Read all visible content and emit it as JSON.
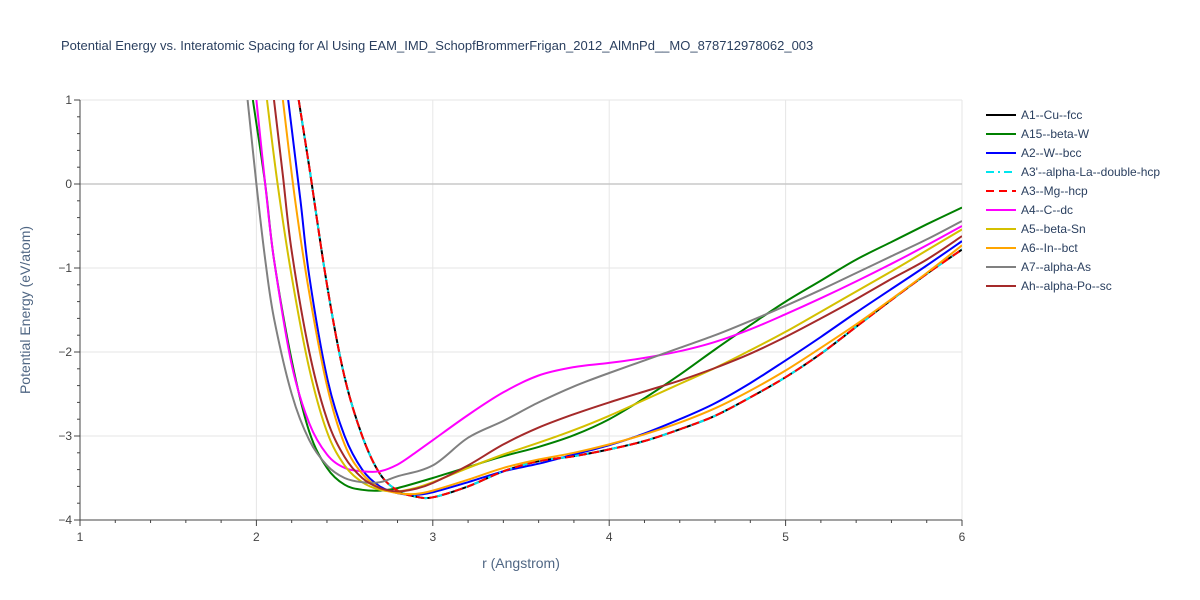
{
  "chart_data": {
    "type": "line",
    "title": "Potential Energy vs. Interatomic Spacing for Al Using EAM_IMD_SchopfBrommerFrigan_2012_AlMnPd__MO_878712978062_003",
    "xlabel": "r (Angstrom)",
    "ylabel": "Potential Energy (eV/atom)",
    "xlim": [
      1,
      6
    ],
    "ylim": [
      -4,
      1
    ],
    "xticks": [
      "1",
      "2",
      "3",
      "4",
      "5",
      "6"
    ],
    "yticks": [
      "1",
      "0",
      "−1",
      "−2",
      "−3",
      "−4"
    ],
    "grid": true,
    "legend_position": "right",
    "series": [
      {
        "name": "A1--Cu--fcc",
        "color": "#000000",
        "dash": "solid",
        "x": [
          2.24,
          2.3,
          2.4,
          2.5,
          2.6,
          2.7,
          2.8,
          2.9,
          3.0,
          3.2,
          3.4,
          3.6,
          3.8,
          4.0,
          4.2,
          4.4,
          4.6,
          4.8,
          5.0,
          5.2,
          5.4,
          5.6,
          5.8,
          6.0
        ],
        "y": [
          1.0,
          0.2,
          -1.2,
          -2.3,
          -3.0,
          -3.45,
          -3.65,
          -3.72,
          -3.73,
          -3.6,
          -3.42,
          -3.3,
          -3.24,
          -3.16,
          -3.06,
          -2.92,
          -2.76,
          -2.54,
          -2.3,
          -2.02,
          -1.7,
          -1.38,
          -1.07,
          -0.78
        ]
      },
      {
        "name": "A15--beta-W",
        "color": "#008000",
        "dash": "solid",
        "x": [
          1.98,
          2.05,
          2.1,
          2.2,
          2.3,
          2.4,
          2.5,
          2.6,
          2.7,
          2.8,
          3.0,
          3.2,
          3.4,
          3.6,
          3.8,
          4.0,
          4.2,
          4.4,
          4.6,
          4.8,
          5.0,
          5.2,
          5.4,
          5.6,
          5.8,
          6.0
        ],
        "y": [
          1.0,
          0.0,
          -0.9,
          -2.1,
          -2.95,
          -3.38,
          -3.58,
          -3.64,
          -3.65,
          -3.62,
          -3.5,
          -3.37,
          -3.24,
          -3.13,
          -2.99,
          -2.8,
          -2.55,
          -2.27,
          -1.97,
          -1.68,
          -1.4,
          -1.15,
          -0.9,
          -0.69,
          -0.48,
          -0.28
        ]
      },
      {
        "name": "A2--W--bcc",
        "color": "#0000ff",
        "dash": "solid",
        "x": [
          2.18,
          2.25,
          2.3,
          2.4,
          2.5,
          2.6,
          2.7,
          2.8,
          2.9,
          3.0,
          3.2,
          3.4,
          3.6,
          3.8,
          4.0,
          4.2,
          4.4,
          4.6,
          4.8,
          5.0,
          5.2,
          5.4,
          5.6,
          5.8,
          6.0
        ],
        "y": [
          1.0,
          -0.2,
          -1.1,
          -2.3,
          -3.0,
          -3.4,
          -3.6,
          -3.68,
          -3.7,
          -3.67,
          -3.55,
          -3.42,
          -3.33,
          -3.22,
          -3.11,
          -2.97,
          -2.8,
          -2.61,
          -2.37,
          -2.1,
          -1.82,
          -1.53,
          -1.25,
          -0.97,
          -0.68
        ]
      },
      {
        "name": "A3'--alpha-La--double-hcp",
        "color": "#00e5ee",
        "dash": "dashdot",
        "x": [
          2.24,
          2.3,
          2.4,
          2.5,
          2.6,
          2.7,
          2.8,
          2.9,
          3.0,
          3.2,
          3.4,
          3.6,
          3.8,
          4.0,
          4.2,
          4.4,
          4.6,
          4.8,
          5.0,
          5.2,
          5.4,
          5.6,
          5.8,
          6.0
        ],
        "y": [
          1.0,
          0.2,
          -1.2,
          -2.3,
          -3.0,
          -3.45,
          -3.65,
          -3.72,
          -3.73,
          -3.6,
          -3.42,
          -3.3,
          -3.24,
          -3.16,
          -3.06,
          -2.92,
          -2.76,
          -2.54,
          -2.3,
          -2.02,
          -1.7,
          -1.38,
          -1.07,
          -0.78
        ]
      },
      {
        "name": "A3--Mg--hcp",
        "color": "#ff0000",
        "dash": "dash",
        "x": [
          2.24,
          2.3,
          2.4,
          2.5,
          2.6,
          2.7,
          2.8,
          2.9,
          3.0,
          3.2,
          3.4,
          3.6,
          3.8,
          4.0,
          4.2,
          4.4,
          4.6,
          4.8,
          5.0,
          5.2,
          5.4,
          5.6,
          5.8,
          6.0
        ],
        "y": [
          1.0,
          0.2,
          -1.2,
          -2.3,
          -3.0,
          -3.45,
          -3.65,
          -3.72,
          -3.73,
          -3.6,
          -3.42,
          -3.3,
          -3.24,
          -3.16,
          -3.06,
          -2.92,
          -2.76,
          -2.54,
          -2.3,
          -2.02,
          -1.7,
          -1.38,
          -1.07,
          -0.78
        ]
      },
      {
        "name": "A4--C--dc",
        "color": "#ff00ff",
        "dash": "solid",
        "x": [
          2.0,
          2.05,
          2.1,
          2.2,
          2.3,
          2.4,
          2.5,
          2.6,
          2.7,
          2.8,
          2.9,
          3.0,
          3.2,
          3.4,
          3.6,
          3.8,
          4.0,
          4.2,
          4.4,
          4.6,
          4.8,
          5.0,
          5.2,
          5.4,
          5.6,
          5.8,
          6.0
        ],
        "y": [
          1.0,
          0.0,
          -0.9,
          -2.15,
          -2.85,
          -3.22,
          -3.38,
          -3.42,
          -3.42,
          -3.34,
          -3.2,
          -3.05,
          -2.75,
          -2.48,
          -2.28,
          -2.18,
          -2.13,
          -2.07,
          -1.99,
          -1.88,
          -1.73,
          -1.55,
          -1.36,
          -1.16,
          -0.95,
          -0.73,
          -0.5
        ]
      },
      {
        "name": "A5--beta-Sn",
        "color": "#d4c000",
        "dash": "solid",
        "x": [
          2.06,
          2.12,
          2.2,
          2.3,
          2.4,
          2.5,
          2.6,
          2.7,
          2.8,
          2.9,
          3.0,
          3.2,
          3.4,
          3.6,
          3.8,
          4.0,
          4.2,
          4.4,
          4.6,
          4.8,
          5.0,
          5.2,
          5.4,
          5.6,
          5.8,
          6.0
        ],
        "y": [
          1.0,
          0.0,
          -1.1,
          -2.2,
          -2.95,
          -3.35,
          -3.55,
          -3.64,
          -3.66,
          -3.62,
          -3.55,
          -3.38,
          -3.22,
          -3.08,
          -2.93,
          -2.76,
          -2.57,
          -2.38,
          -2.19,
          -1.98,
          -1.76,
          -1.52,
          -1.28,
          -1.04,
          -0.79,
          -0.54
        ]
      },
      {
        "name": "A6--In--bct",
        "color": "#ffa500",
        "dash": "solid",
        "x": [
          2.15,
          2.22,
          2.3,
          2.4,
          2.5,
          2.6,
          2.7,
          2.8,
          2.9,
          3.0,
          3.2,
          3.4,
          3.6,
          3.8,
          4.0,
          4.2,
          4.4,
          4.6,
          4.8,
          5.0,
          5.2,
          5.4,
          5.6,
          5.8,
          6.0
        ],
        "y": [
          1.0,
          -0.2,
          -1.3,
          -2.4,
          -3.1,
          -3.45,
          -3.62,
          -3.68,
          -3.69,
          -3.65,
          -3.52,
          -3.38,
          -3.28,
          -3.2,
          -3.1,
          -2.98,
          -2.84,
          -2.67,
          -2.46,
          -2.22,
          -1.95,
          -1.67,
          -1.37,
          -1.06,
          -0.73
        ]
      },
      {
        "name": "A7--alpha-As",
        "color": "#808080",
        "dash": "solid",
        "x": [
          1.95,
          2.0,
          2.05,
          2.1,
          2.2,
          2.3,
          2.4,
          2.5,
          2.6,
          2.7,
          2.8,
          3.0,
          3.2,
          3.4,
          3.6,
          3.8,
          4.0,
          4.2,
          4.4,
          4.6,
          4.8,
          5.0,
          5.2,
          5.4,
          5.6,
          5.8,
          6.0
        ],
        "y": [
          1.0,
          0.0,
          -0.9,
          -1.6,
          -2.5,
          -3.05,
          -3.35,
          -3.5,
          -3.55,
          -3.55,
          -3.48,
          -3.35,
          -3.02,
          -2.82,
          -2.6,
          -2.41,
          -2.25,
          -2.1,
          -1.95,
          -1.8,
          -1.63,
          -1.45,
          -1.26,
          -1.06,
          -0.86,
          -0.66,
          -0.44
        ]
      },
      {
        "name": "Ah--alpha-Po--sc",
        "color": "#a52a2a",
        "dash": "solid",
        "x": [
          2.1,
          2.15,
          2.2,
          2.3,
          2.4,
          2.5,
          2.6,
          2.7,
          2.8,
          2.9,
          3.0,
          3.2,
          3.4,
          3.6,
          3.8,
          4.0,
          4.2,
          4.4,
          4.6,
          4.8,
          5.0,
          5.2,
          5.4,
          5.6,
          5.8,
          6.0
        ],
        "y": [
          1.0,
          0.1,
          -0.8,
          -2.0,
          -2.8,
          -3.25,
          -3.5,
          -3.62,
          -3.66,
          -3.63,
          -3.56,
          -3.35,
          -3.1,
          -2.9,
          -2.74,
          -2.6,
          -2.47,
          -2.34,
          -2.19,
          -2.02,
          -1.82,
          -1.6,
          -1.37,
          -1.13,
          -0.9,
          -0.62
        ]
      }
    ]
  }
}
